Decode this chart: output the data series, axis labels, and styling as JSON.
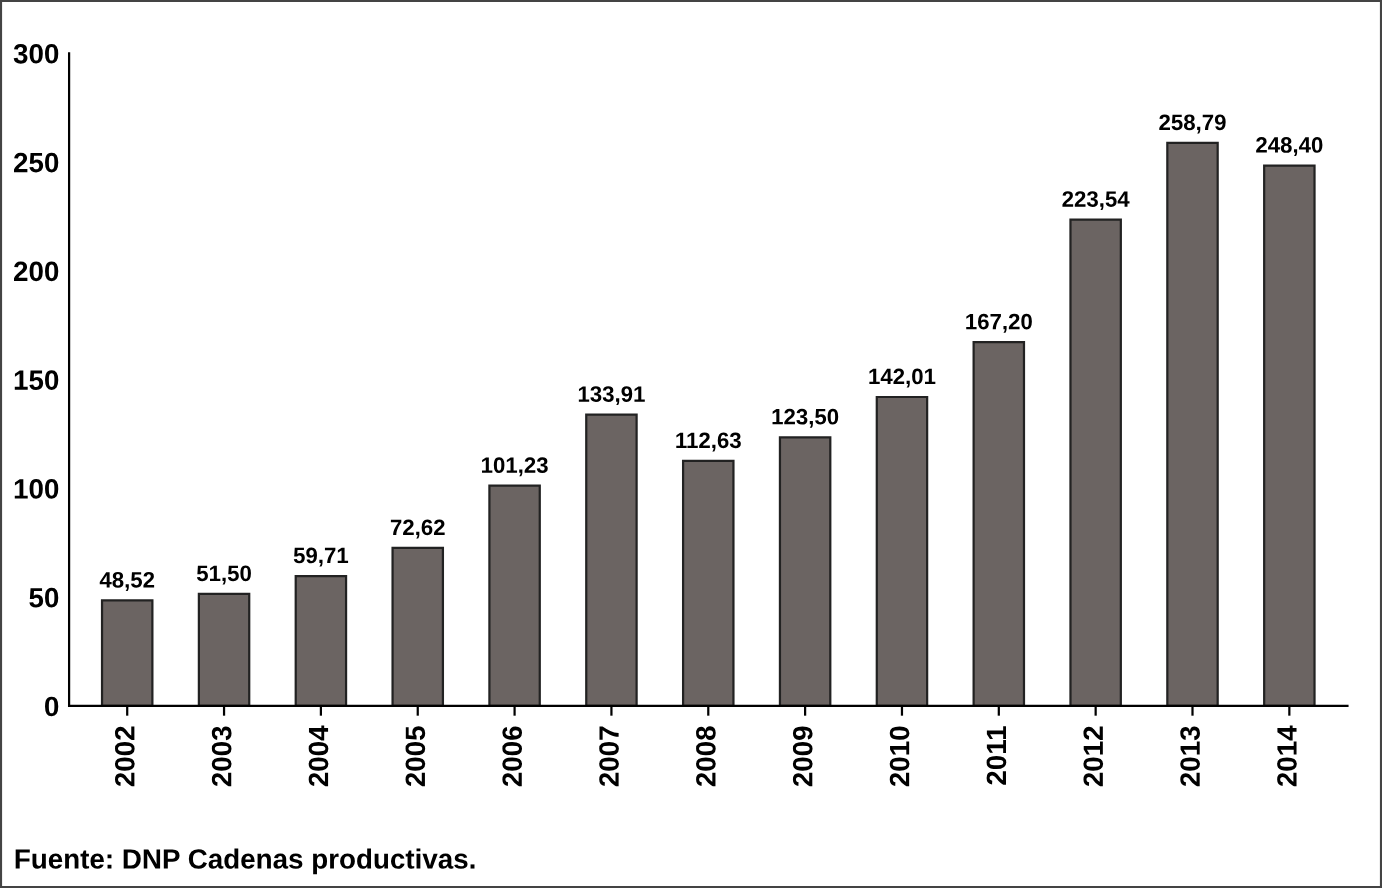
{
  "chart_data": {
    "type": "bar",
    "categories": [
      "2002",
      "2003",
      "2004",
      "2005",
      "2006",
      "2007",
      "2008",
      "2009",
      "2010",
      "2011",
      "2012",
      "2013",
      "2014"
    ],
    "values": [
      48.52,
      51.5,
      59.71,
      72.62,
      101.23,
      133.91,
      112.63,
      123.5,
      142.01,
      167.2,
      223.54,
      258.79,
      248.4
    ],
    "value_labels": [
      "48,52",
      "51,50",
      "59,71",
      "72,62",
      "101,23",
      "133,91",
      "112,63",
      "123,50",
      "142,01",
      "167,20",
      "223,54",
      "258,79",
      "248,40"
    ],
    "color": "#6b6462",
    "ylim": [
      0,
      300
    ],
    "yticks": [
      0,
      50,
      100,
      150,
      200,
      250,
      300
    ],
    "grid": false,
    "annotations": [
      "Fuente: DNP Cadenas productivas."
    ]
  }
}
